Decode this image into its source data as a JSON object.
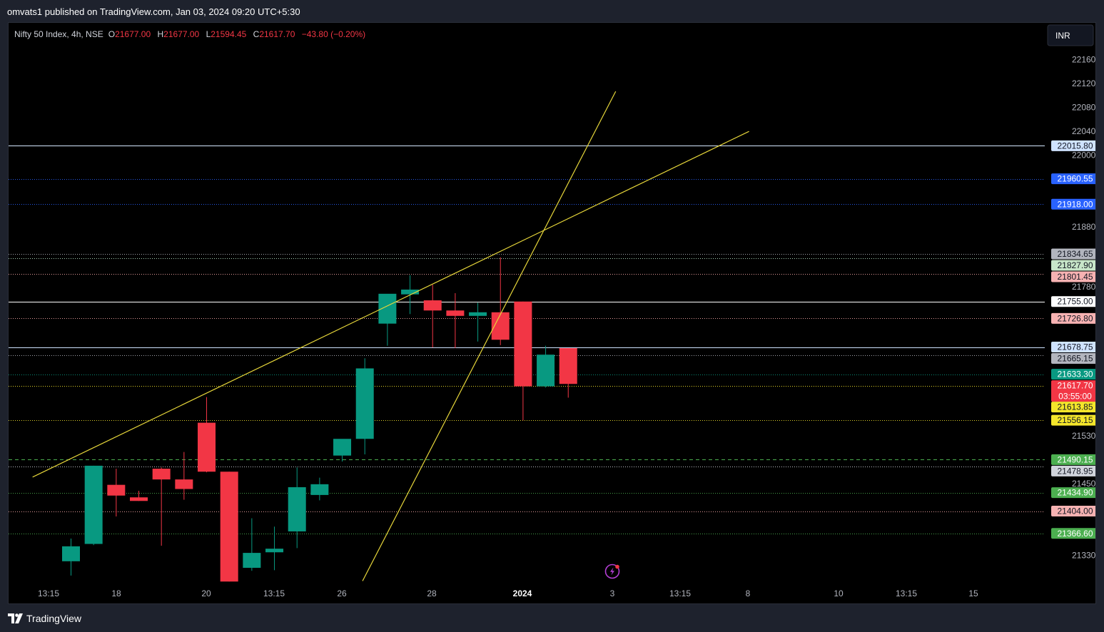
{
  "header": {
    "published_text": "omvats1 published on TradingView.com, Jan 03, 2024 09:20 UTC+5:30"
  },
  "footer": {
    "brand": "TradingView"
  },
  "chart_data": {
    "type": "candlestick",
    "symbol_label": "Nifty 50 Index, 4h, NSE",
    "ohlc_header": {
      "open_prefix": "O",
      "open": "21677.00",
      "high_prefix": "H",
      "high": "21677.00",
      "low_prefix": "L",
      "low": "21594.45",
      "close_prefix": "C",
      "close": "21617.70",
      "change": "−43.80 (−0.20%)"
    },
    "currency_button": "INR",
    "colors": {
      "up": "#089981",
      "down": "#f23645",
      "trendline": "#e6d63a",
      "background": "#000000",
      "axis_text": "#b2b5be"
    },
    "y_axis": {
      "ticks": [
        "22160.00",
        "22120.00",
        "22080.00",
        "22040.00",
        "22000.00",
        "21880.00",
        "21780.00",
        "21530.00",
        "21450.00",
        "21330.00"
      ],
      "range": [
        21290,
        22200
      ]
    },
    "x_axis": {
      "ticks": [
        {
          "label": "13:15",
          "bold": false
        },
        {
          "label": "18",
          "bold": false
        },
        {
          "label": "20",
          "bold": false
        },
        {
          "label": "13:15",
          "bold": false
        },
        {
          "label": "26",
          "bold": false
        },
        {
          "label": "28",
          "bold": false
        },
        {
          "label": "2024",
          "bold": true
        },
        {
          "label": "3",
          "bold": false
        },
        {
          "label": "13:15",
          "bold": false
        },
        {
          "label": "8",
          "bold": false
        },
        {
          "label": "10",
          "bold": false
        },
        {
          "label": "13:15",
          "bold": false
        },
        {
          "label": "15",
          "bold": false
        }
      ]
    },
    "candles": [
      {
        "o": 21320,
        "h": 21358,
        "l": 21296,
        "c": 21345
      },
      {
        "o": 21349,
        "h": 21480,
        "l": 21347,
        "c": 21480
      },
      {
        "o": 21448,
        "h": 21475,
        "l": 21395,
        "c": 21430
      },
      {
        "o": 21427,
        "h": 21438,
        "l": 21421,
        "c": 21421
      },
      {
        "o": 21475,
        "h": 21477,
        "l": 21346,
        "c": 21457
      },
      {
        "o": 21457,
        "h": 21503,
        "l": 21423,
        "c": 21441
      },
      {
        "o": 21552,
        "h": 21595,
        "l": 21469,
        "c": 21470
      },
      {
        "o": 21470,
        "h": 21470,
        "l": 21286,
        "c": 21286
      },
      {
        "o": 21309,
        "h": 21392,
        "l": 21304,
        "c": 21334
      },
      {
        "o": 21335,
        "h": 21378,
        "l": 21305,
        "c": 21341
      },
      {
        "o": 21370,
        "h": 21477,
        "l": 21342,
        "c": 21444
      },
      {
        "o": 21431,
        "h": 21460,
        "l": 21422,
        "c": 21449
      },
      {
        "o": 21497,
        "h": 21518,
        "l": 21487,
        "c": 21525
      },
      {
        "o": 21525,
        "h": 21660,
        "l": 21499,
        "c": 21643
      },
      {
        "o": 21718,
        "h": 21762,
        "l": 21681,
        "c": 21768
      },
      {
        "o": 21767,
        "h": 21799,
        "l": 21734,
        "c": 21775
      },
      {
        "o": 21757,
        "h": 21783,
        "l": 21678,
        "c": 21740
      },
      {
        "o": 21740,
        "h": 21769,
        "l": 21677,
        "c": 21731
      },
      {
        "o": 21731,
        "h": 21753,
        "l": 21688,
        "c": 21737
      },
      {
        "o": 21737,
        "h": 21829,
        "l": 21682,
        "c": 21691
      },
      {
        "o": 21755,
        "h": 21755,
        "l": 21556,
        "c": 21613
      },
      {
        "o": 21613,
        "h": 21681,
        "l": 21611,
        "c": 21666
      },
      {
        "o": 21677,
        "h": 21677,
        "l": 21594,
        "c": 21617
      }
    ],
    "levels": [
      {
        "price": 22015.8,
        "label": "22015.80",
        "style": "solid",
        "line": "#d6e8ff",
        "tag_bg": "#cfe3ff",
        "tag_fg": "#131722"
      },
      {
        "price": 21960.55,
        "label": "21960.55",
        "style": "dotted",
        "line": "#2962ff",
        "tag_bg": "#2962ff",
        "tag_fg": "#ffffff"
      },
      {
        "price": 21918.0,
        "label": "21918.00",
        "style": "dotted",
        "line": "#2962ff",
        "tag_bg": "#2962ff",
        "tag_fg": "#ffffff"
      },
      {
        "price": 21834.65,
        "label": "21834.65",
        "style": "dotted",
        "line": "#b2b5be",
        "tag_bg": "#b2b5be",
        "tag_fg": "#131722"
      },
      {
        "price": 21827.9,
        "label": "21827.90",
        "style": "dotted",
        "line": "#b7e4c7",
        "tag_bg": "#c8e6c9",
        "tag_fg": "#131722"
      },
      {
        "price": 21801.45,
        "label": "21801.45",
        "style": "dotted",
        "line": "#f7a8a8",
        "tag_bg": "#f7b2b2",
        "tag_fg": "#131722"
      },
      {
        "price": 21755.0,
        "label": "21755.00",
        "style": "solid",
        "line": "#ffffff",
        "tag_bg": "#ffffff",
        "tag_fg": "#131722"
      },
      {
        "price": 21726.8,
        "label": "21726.80",
        "style": "dotted",
        "line": "#f7a8a8",
        "tag_bg": "#f7b2b2",
        "tag_fg": "#131722"
      },
      {
        "price": 21678.75,
        "label": "21678.75",
        "style": "solid",
        "line": "#cfe3ff",
        "tag_bg": "#cfe3ff",
        "tag_fg": "#131722"
      },
      {
        "price": 21665.15,
        "label": "21665.15",
        "style": "dotted",
        "line": "#b2b5be",
        "tag_bg": "#b2b5be",
        "tag_fg": "#131722"
      },
      {
        "price": 21633.3,
        "label": "21633.30",
        "style": "dotted",
        "line": "#089981",
        "tag_bg": "#089981",
        "tag_fg": "#ffffff"
      },
      {
        "price": 21613.85,
        "label": "21613.85",
        "style": "dotted",
        "line": "#f5e62b",
        "tag_bg": "#f5e62b",
        "tag_fg": "#131722"
      },
      {
        "price": 21556.15,
        "label": "21556.15",
        "style": "dotted",
        "line": "#f5e62b",
        "tag_bg": "#f5e62b",
        "tag_fg": "#131722"
      },
      {
        "price": 21490.15,
        "label": "21490.15",
        "style": "dashed",
        "line": "#4caf50",
        "tag_bg": "#4caf50",
        "tag_fg": "#ffffff"
      },
      {
        "price": 21478.95,
        "label": "21478.95",
        "style": "dotted",
        "line": "#d1d4dc",
        "tag_bg": "#d1d4dc",
        "tag_fg": "#131722"
      },
      {
        "price": 21434.9,
        "label": "21434.90",
        "style": "dotted",
        "line": "#4caf50",
        "tag_bg": "#4caf50",
        "tag_fg": "#ffffff"
      },
      {
        "price": 21404.0,
        "label": "21404.00",
        "style": "dotted",
        "line": "#f7a8a8",
        "tag_bg": "#f7b2b2",
        "tag_fg": "#131722"
      },
      {
        "price": 21366.6,
        "label": "21366.60",
        "style": "dotted",
        "line": "#4caf50",
        "tag_bg": "#4caf50",
        "tag_fg": "#ffffff"
      }
    ],
    "last_price": {
      "price": 21617.7,
      "label": "21617.70",
      "countdown": "03:55:00",
      "bg": "#f23645",
      "fg": "#ffffff"
    },
    "trendlines": [
      {
        "from": {
          "bar": -1.7,
          "price": 21461
        },
        "to": {
          "bar": 30.0,
          "price": 22040
        }
      },
      {
        "from": {
          "bar": 12.9,
          "price": 21287
        },
        "to": {
          "bar": 24.1,
          "price": 22107
        }
      }
    ]
  }
}
